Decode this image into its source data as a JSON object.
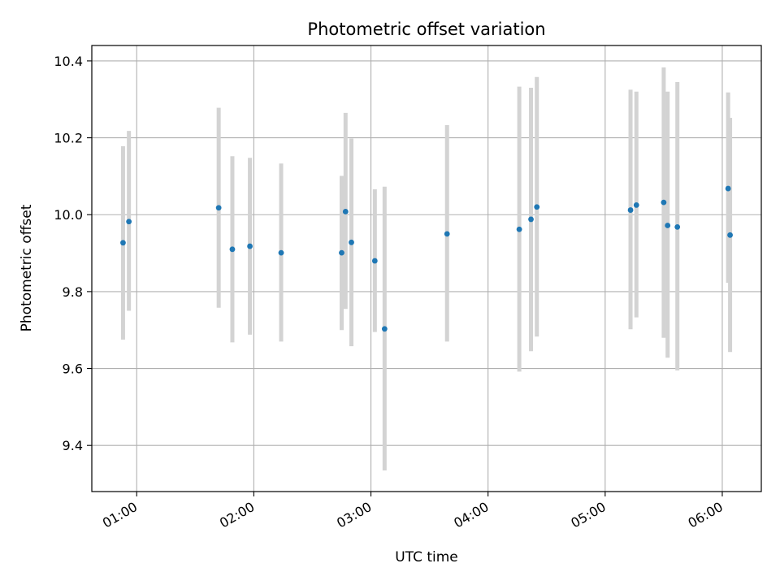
{
  "chart_data": {
    "type": "scatter",
    "title": "Photometric offset variation",
    "xlabel": "UTC time",
    "ylabel": "Photometric offset",
    "x_unit": "UTC time HH:MM",
    "xlim": [
      "00:37",
      "06:20"
    ],
    "ylim": [
      9.28,
      10.44
    ],
    "x_ticks": [
      "01:00",
      "02:00",
      "03:00",
      "04:00",
      "05:00",
      "06:00"
    ],
    "y_ticks": [
      9.4,
      9.6,
      9.8,
      10.0,
      10.2,
      10.4
    ],
    "grid": true,
    "legend": "none",
    "error_bar_color": "#d3d3d3",
    "marker_color": "#1f77b4",
    "points": [
      {
        "x": "00:53",
        "y": 9.927,
        "y_low": 9.675,
        "y_high": 10.178
      },
      {
        "x": "00:56",
        "y": 9.982,
        "y_low": 9.75,
        "y_high": 10.218
      },
      {
        "x": "01:42",
        "y": 10.018,
        "y_low": 9.758,
        "y_high": 10.278
      },
      {
        "x": "01:49",
        "y": 9.91,
        "y_low": 9.668,
        "y_high": 10.152
      },
      {
        "x": "01:58",
        "y": 9.918,
        "y_low": 9.688,
        "y_high": 10.148
      },
      {
        "x": "02:14",
        "y": 9.901,
        "y_low": 9.67,
        "y_high": 10.133
      },
      {
        "x": "02:45",
        "y": 9.901,
        "y_low": 9.7,
        "y_high": 10.101
      },
      {
        "x": "02:47",
        "y": 10.008,
        "y_low": 9.755,
        "y_high": 10.265
      },
      {
        "x": "02:50",
        "y": 9.928,
        "y_low": 9.658,
        "y_high": 10.198
      },
      {
        "x": "03:02",
        "y": 9.88,
        "y_low": 9.695,
        "y_high": 10.066
      },
      {
        "x": "03:07",
        "y": 9.703,
        "y_low": 9.335,
        "y_high": 10.073
      },
      {
        "x": "03:39",
        "y": 9.95,
        "y_low": 9.67,
        "y_high": 10.233
      },
      {
        "x": "04:16",
        "y": 9.962,
        "y_low": 9.592,
        "y_high": 10.333
      },
      {
        "x": "04:22",
        "y": 9.988,
        "y_low": 9.645,
        "y_high": 10.33
      },
      {
        "x": "04:25",
        "y": 10.02,
        "y_low": 9.683,
        "y_high": 10.358
      },
      {
        "x": "05:13",
        "y": 10.012,
        "y_low": 9.702,
        "y_high": 10.325
      },
      {
        "x": "05:16",
        "y": 10.025,
        "y_low": 9.733,
        "y_high": 10.32
      },
      {
        "x": "05:30",
        "y": 10.032,
        "y_low": 9.68,
        "y_high": 10.383
      },
      {
        "x": "05:32",
        "y": 9.972,
        "y_low": 9.628,
        "y_high": 10.32
      },
      {
        "x": "05:37",
        "y": 9.968,
        "y_low": 9.595,
        "y_high": 10.345
      },
      {
        "x": "06:03",
        "y": 10.068,
        "y_low": 9.823,
        "y_high": 10.318
      },
      {
        "x": "06:04",
        "y": 9.947,
        "y_low": 9.643,
        "y_high": 10.252
      }
    ]
  }
}
